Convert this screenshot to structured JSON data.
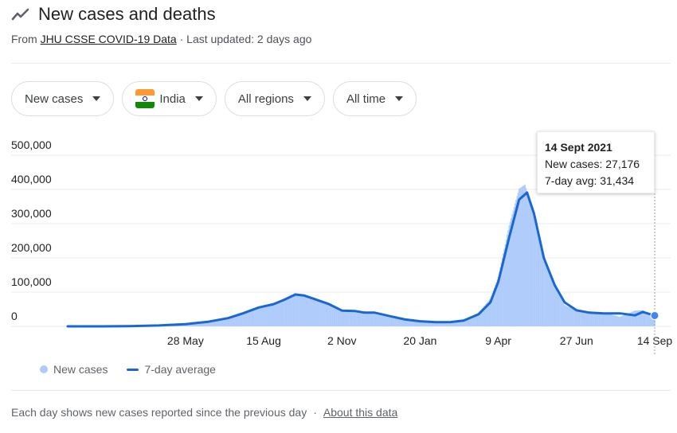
{
  "header": {
    "title": "New cases and deaths",
    "icon": "trend-line-icon",
    "source_prefix": "From ",
    "source_link": "JHU CSSE COVID-19 Data",
    "updated": " · Last updated: 2 days ago"
  },
  "filters": [
    {
      "label": "New cases"
    },
    {
      "label": "India",
      "flag": true
    },
    {
      "label": "All regions"
    },
    {
      "label": "All time"
    }
  ],
  "colors": {
    "bars": "#aecbfa",
    "avg_line": "#1967d2",
    "grid": "#ebebeb"
  },
  "tooltip": {
    "date": "14 Sept 2021",
    "cases_label": "New cases: 27,176",
    "avg_label": "7-day avg: 31,434"
  },
  "legend": {
    "cases": "New cases",
    "average": "7-day average"
  },
  "footer": {
    "note": "Each day shows new cases reported since the previous day",
    "separator": "·",
    "link": "About this data"
  },
  "chart_data": {
    "type": "area",
    "x_domain": [
      "2020-01-30",
      "2021-09-14"
    ],
    "ylim": [
      0,
      500000
    ],
    "y_ticks": [
      {
        "value": 0,
        "label": "0"
      },
      {
        "value": 100000,
        "label": "100,000"
      },
      {
        "value": 200000,
        "label": "200,000"
      },
      {
        "value": 300000,
        "label": "300,000"
      },
      {
        "value": 400000,
        "label": "400,000"
      },
      {
        "value": 500000,
        "label": "500,000"
      }
    ],
    "x_ticks": [
      {
        "date": "2020-05-28",
        "label": "28 May"
      },
      {
        "date": "2020-08-15",
        "label": "15 Aug"
      },
      {
        "date": "2020-11-02",
        "label": "2 Nov"
      },
      {
        "date": "2021-01-20",
        "label": "20 Jan"
      },
      {
        "date": "2021-04-09",
        "label": "9 Apr"
      },
      {
        "date": "2021-06-27",
        "label": "27 Jun"
      },
      {
        "date": "2021-09-14",
        "label": "14 Sep"
      }
    ],
    "grid": true,
    "series": [
      {
        "name": "7-day average",
        "style": "line",
        "points": [
          [
            "2020-01-30",
            0
          ],
          [
            "2020-03-01",
            0
          ],
          [
            "2020-04-01",
            800
          ],
          [
            "2020-05-01",
            2500
          ],
          [
            "2020-05-28",
            6500
          ],
          [
            "2020-06-20",
            13500
          ],
          [
            "2020-07-10",
            24000
          ],
          [
            "2020-07-25",
            38000
          ],
          [
            "2020-08-10",
            55000
          ],
          [
            "2020-08-25",
            65000
          ],
          [
            "2020-09-05",
            78000
          ],
          [
            "2020-09-16",
            93000
          ],
          [
            "2020-09-25",
            90000
          ],
          [
            "2020-10-05",
            80000
          ],
          [
            "2020-10-20",
            65000
          ],
          [
            "2020-11-02",
            46000
          ],
          [
            "2020-11-15",
            45000
          ],
          [
            "2020-11-25",
            40000
          ],
          [
            "2020-12-05",
            40000
          ],
          [
            "2020-12-20",
            30000
          ],
          [
            "2021-01-05",
            20000
          ],
          [
            "2021-01-20",
            15000
          ],
          [
            "2021-02-05",
            12000
          ],
          [
            "2021-02-20",
            12500
          ],
          [
            "2021-03-05",
            17000
          ],
          [
            "2021-03-20",
            35000
          ],
          [
            "2021-04-01",
            70000
          ],
          [
            "2021-04-09",
            130000
          ],
          [
            "2021-04-20",
            260000
          ],
          [
            "2021-04-30",
            370000
          ],
          [
            "2021-05-08",
            391000
          ],
          [
            "2021-05-15",
            330000
          ],
          [
            "2021-05-25",
            200000
          ],
          [
            "2021-06-05",
            120000
          ],
          [
            "2021-06-15",
            70000
          ],
          [
            "2021-06-27",
            47000
          ],
          [
            "2021-07-10",
            40000
          ],
          [
            "2021-07-25",
            38000
          ],
          [
            "2021-08-10",
            38000
          ],
          [
            "2021-08-25",
            32000
          ],
          [
            "2021-09-02",
            42000
          ],
          [
            "2021-09-14",
            31434
          ]
        ]
      },
      {
        "name": "New cases",
        "style": "bars",
        "points": [
          [
            "2020-01-30",
            0
          ],
          [
            "2020-03-01",
            0
          ],
          [
            "2020-04-01",
            900
          ],
          [
            "2020-05-01",
            2600
          ],
          [
            "2020-05-28",
            7000
          ],
          [
            "2020-06-20",
            14500
          ],
          [
            "2020-07-10",
            26000
          ],
          [
            "2020-07-25",
            40000
          ],
          [
            "2020-08-10",
            57000
          ],
          [
            "2020-08-25",
            68000
          ],
          [
            "2020-09-05",
            82000
          ],
          [
            "2020-09-16",
            97000
          ],
          [
            "2020-09-25",
            88000
          ],
          [
            "2020-10-05",
            78000
          ],
          [
            "2020-10-20",
            62000
          ],
          [
            "2020-11-02",
            45000
          ],
          [
            "2020-11-15",
            42000
          ],
          [
            "2020-11-25",
            44000
          ],
          [
            "2020-12-05",
            36000
          ],
          [
            "2020-12-20",
            26000
          ],
          [
            "2021-01-05",
            18000
          ],
          [
            "2021-01-20",
            14000
          ],
          [
            "2021-02-05",
            11000
          ],
          [
            "2021-02-20",
            13000
          ],
          [
            "2021-03-05",
            18000
          ],
          [
            "2021-03-20",
            40000
          ],
          [
            "2021-04-01",
            81000
          ],
          [
            "2021-04-09",
            145000
          ],
          [
            "2021-04-20",
            295000
          ],
          [
            "2021-04-30",
            402000
          ],
          [
            "2021-05-06",
            414000
          ],
          [
            "2021-05-15",
            326000
          ],
          [
            "2021-05-25",
            196000
          ],
          [
            "2021-06-05",
            114000
          ],
          [
            "2021-06-15",
            62000
          ],
          [
            "2021-06-27",
            46000
          ],
          [
            "2021-07-10",
            41000
          ],
          [
            "2021-07-25",
            39000
          ],
          [
            "2021-08-10",
            28000
          ],
          [
            "2021-08-25",
            46000
          ],
          [
            "2021-09-02",
            47000
          ],
          [
            "2021-09-14",
            27176
          ]
        ]
      }
    ],
    "highlight": {
      "date": "2021-09-14",
      "value": 31434
    }
  }
}
